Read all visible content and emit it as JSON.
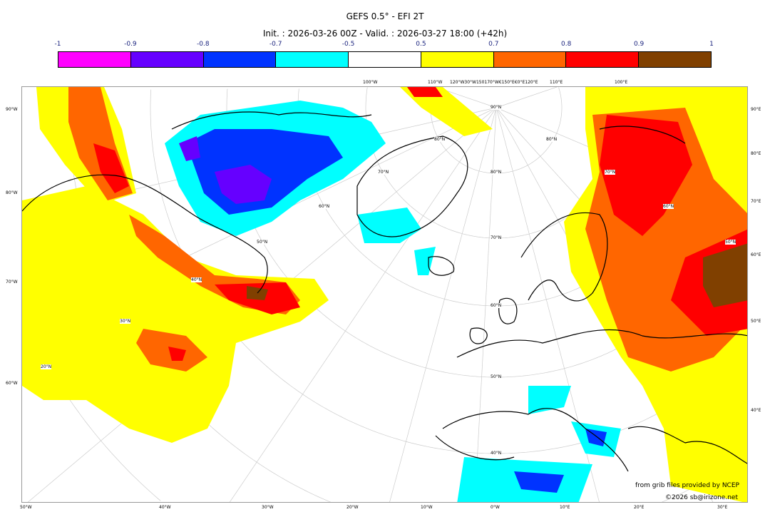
{
  "title": "GEFS 0.5° - EFI 2T",
  "subtitle": "Init. : 2026-03-26 00Z - Valid. : 2026-03-27 18:00 (+42h)",
  "colorbar": {
    "ticks": [
      "-1",
      "-0.9",
      "-0.8",
      "-0.7",
      "-0.5",
      "0.5",
      "0.7",
      "0.8",
      "0.9",
      "1"
    ],
    "colors": [
      "#ff00ff",
      "#6600ff",
      "#0033ff",
      "#00ffff",
      "#ffffff",
      "#ffff00",
      "#ff6600",
      "#ff0000",
      "#804000"
    ]
  },
  "axes": {
    "left": [
      "90°W",
      "80°W",
      "70°W",
      "60°W"
    ],
    "right": [
      "90°E",
      "80°E",
      "70°E",
      "60°E",
      "50°E",
      "40°E"
    ],
    "bottom": [
      "50°W",
      "40°W",
      "30°W",
      "20°W",
      "10°W",
      "0°W",
      "10°E",
      "20°E",
      "30°E"
    ],
    "top": [
      "100°W",
      "110°W",
      "120°W30°W150170°W€150°E€0°E120°E",
      "110°E",
      "100°E"
    ],
    "lat_center": [
      "90°N",
      "80°N",
      "70°N",
      "60°N",
      "50°N",
      "40°N"
    ],
    "lat_left": [
      "80°N",
      "70°N",
      "60°N",
      "50°N",
      "40°N",
      "30°N",
      "20°N"
    ],
    "lat_right": [
      "80°N",
      "70°N",
      "60°N",
      "50°N"
    ]
  },
  "credits": {
    "source": "from grib files provided by NCEP",
    "copyright": "©2026 sb@irizone.net"
  }
}
